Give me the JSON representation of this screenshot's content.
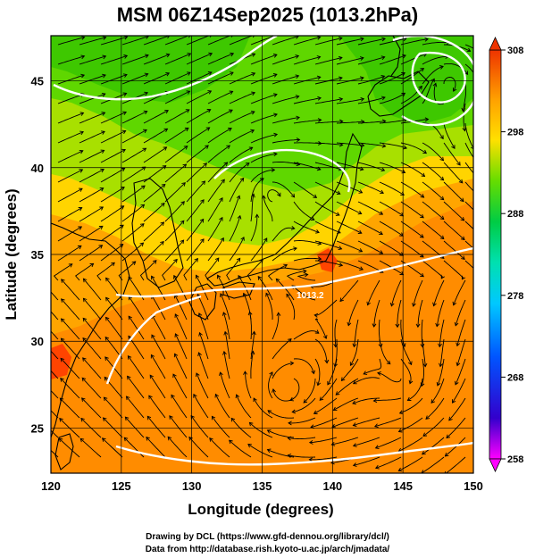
{
  "title": "MSM 06Z14Sep2025 (1013.2hPa)",
  "map": {
    "x_axis": {
      "label": "Longitude (degrees)",
      "range": [
        120,
        150
      ],
      "ticks": [
        "120",
        "125",
        "130",
        "135",
        "140",
        "145",
        "150"
      ]
    },
    "y_axis": {
      "label": "Latitude  (degrees)",
      "range": [
        22.4,
        47.6
      ],
      "ticks": [
        "25",
        "30",
        "35",
        "40",
        "45"
      ]
    },
    "contour_label": "1013.2",
    "colorbar": {
      "range": [
        258,
        308
      ],
      "tick_labels": [
        "308",
        "298",
        "288",
        "278",
        "268",
        "258"
      ],
      "colors": [
        "#ff00ff",
        "#3300cc",
        "#0055ff",
        "#00aaff",
        "#00e5c8",
        "#00cc44",
        "#55dd00",
        "#ccee00",
        "#ffdd00",
        "#ffaa00",
        "#ff7700",
        "#ee3300"
      ]
    },
    "field_colors": {
      "warm": "#ff8c00",
      "warm_light": "#ffa500",
      "mild": "#ffd400",
      "cool": "#a8e000",
      "cold": "#5fd700",
      "coldest": "#3ec800",
      "hot": "#ff4400"
    }
  },
  "credits": {
    "line1": "Drawing by DCL (https://www.gfd-dennou.org/library/dcl/)",
    "line2": "Data from http://database.rish.kyoto-u.ac.jp/arch/jmadata/"
  }
}
